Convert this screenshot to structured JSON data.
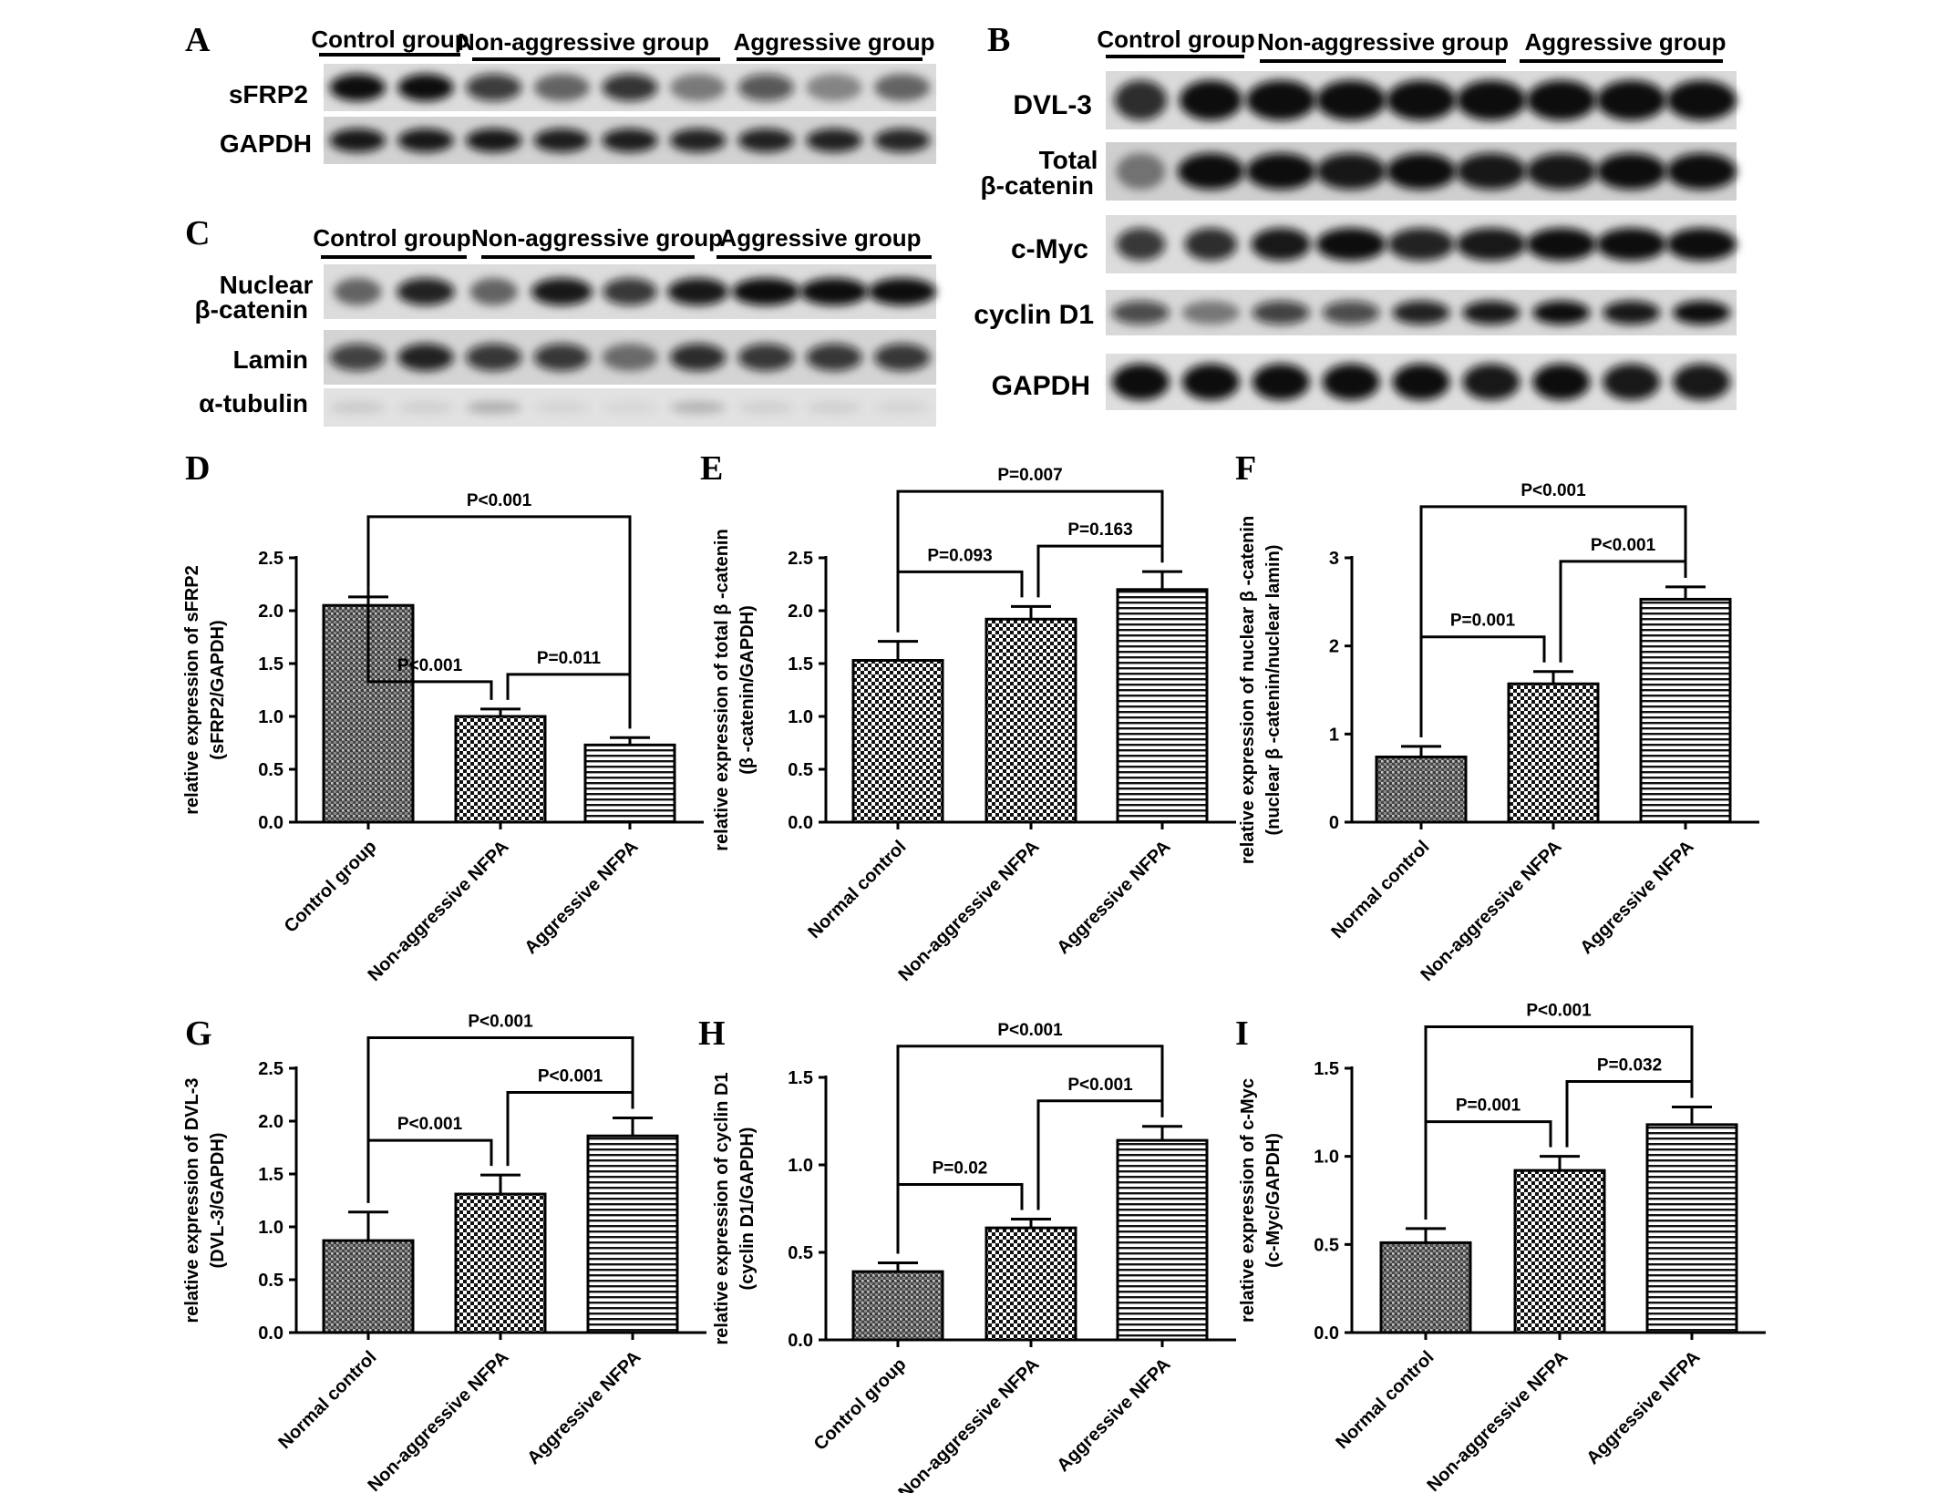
{
  "panel_letters": [
    "A",
    "B",
    "C",
    "D",
    "E",
    "F",
    "G",
    "H",
    "I"
  ],
  "blots": {
    "A": {
      "group_labels": [
        "Control group",
        "Non-aggressive group",
        "Aggressive group"
      ],
      "row_labels": [
        "sFRP2",
        "GAPDH"
      ]
    },
    "B": {
      "group_labels": [
        "Control group",
        "Non-aggressive group",
        "Aggressive group"
      ],
      "row_labels": [
        "DVL-3",
        "Total",
        "β-catenin",
        "c-Myc",
        "cyclin D1",
        "GAPDH"
      ]
    },
    "C": {
      "group_labels": [
        "Control group",
        "Non-aggressive group",
        "Aggressive group"
      ],
      "row_labels": [
        "Nuclear",
        "β-catenin",
        "Lamin",
        "α-tubulin"
      ]
    }
  },
  "chart_data": [
    {
      "panel": "D",
      "type": "bar",
      "categories": [
        "Control group",
        "Non-aggressive NFPA",
        "Aggressive NFPA"
      ],
      "values": [
        2.05,
        1.0,
        0.73
      ],
      "errors": [
        0.08,
        0.07,
        0.07
      ],
      "ylabel_lines": [
        "relative expression of sFRP2",
        "(sFRP2/GAPDH)"
      ],
      "ylim": [
        0,
        2.5
      ],
      "yticks": [
        "0.0",
        "0.5",
        "1.0",
        "1.5",
        "2.0",
        "2.5"
      ],
      "patterns": [
        "stipple",
        "checker",
        "hstripe"
      ],
      "comparisons": [
        {
          "from": 0,
          "to": 2,
          "label": "P<0.001"
        },
        {
          "from": 0,
          "to": 1,
          "label": "P<0.001"
        },
        {
          "from": 1,
          "to": 2,
          "label": "P=0.011"
        }
      ]
    },
    {
      "panel": "E",
      "type": "bar",
      "categories": [
        "Normal control",
        "Non-aggressive NFPA",
        "Aggressive NFPA"
      ],
      "values": [
        1.53,
        1.92,
        2.2
      ],
      "errors": [
        0.18,
        0.12,
        0.17
      ],
      "ylabel_lines": [
        "relative expression of total β -catenin",
        "(β -catenin/GAPDH)"
      ],
      "ylim": [
        0,
        2.5
      ],
      "yticks": [
        "0.0",
        "0.5",
        "1.0",
        "1.5",
        "2.0",
        "2.5"
      ],
      "patterns": [
        "checker",
        "checker",
        "hstripe"
      ],
      "comparisons": [
        {
          "from": 0,
          "to": 2,
          "label": "P=0.007"
        },
        {
          "from": 0,
          "to": 1,
          "label": "P=0.093"
        },
        {
          "from": 1,
          "to": 2,
          "label": "P=0.163"
        }
      ]
    },
    {
      "panel": "F",
      "type": "bar",
      "categories": [
        "Normal control",
        "Non-aggressive NFPA",
        "Aggressive NFPA"
      ],
      "values": [
        0.74,
        1.57,
        2.53
      ],
      "errors": [
        0.12,
        0.14,
        0.14
      ],
      "ylabel_lines": [
        "relative expression of nuclear  β -catenin",
        "(nuclear β -catenin/nuclear lamin)"
      ],
      "ylim": [
        0,
        3
      ],
      "yticks": [
        "0",
        "1",
        "2",
        "3"
      ],
      "patterns": [
        "stipple",
        "checker",
        "hstripe"
      ],
      "comparisons": [
        {
          "from": 0,
          "to": 2,
          "label": "P<0.001"
        },
        {
          "from": 0,
          "to": 1,
          "label": "P=0.001"
        },
        {
          "from": 1,
          "to": 2,
          "label": "P<0.001"
        }
      ]
    },
    {
      "panel": "G",
      "type": "bar",
      "categories": [
        "Normal control",
        "Non-aggressive NFPA",
        "Aggressive NFPA"
      ],
      "values": [
        0.87,
        1.31,
        1.86
      ],
      "errors": [
        0.27,
        0.18,
        0.17
      ],
      "ylabel_lines": [
        "relative expression of DVL-3",
        "(DVL-3/GAPDH)"
      ],
      "ylim": [
        0,
        2.5
      ],
      "yticks": [
        "0.0",
        "0.5",
        "1.0",
        "1.5",
        "2.0",
        "2.5"
      ],
      "patterns": [
        "stipple",
        "checker",
        "hstripe"
      ],
      "comparisons": [
        {
          "from": 0,
          "to": 2,
          "label": "P<0.001"
        },
        {
          "from": 0,
          "to": 1,
          "label": "P<0.001"
        },
        {
          "from": 1,
          "to": 2,
          "label": "P<0.001"
        }
      ]
    },
    {
      "panel": "H",
      "type": "bar",
      "categories": [
        "Control group",
        "Non-aggressive NFPA",
        "Aggressive NFPA"
      ],
      "values": [
        0.39,
        0.64,
        1.14
      ],
      "errors": [
        0.05,
        0.05,
        0.08
      ],
      "ylabel_lines": [
        "relative expression of cyclin D1",
        "(cyclin D1/GAPDH)"
      ],
      "ylim": [
        0,
        1.5
      ],
      "yticks": [
        "0.0",
        "0.5",
        "1.0",
        "1.5"
      ],
      "patterns": [
        "stipple",
        "checker",
        "hstripe"
      ],
      "comparisons": [
        {
          "from": 0,
          "to": 2,
          "label": "P<0.001"
        },
        {
          "from": 0,
          "to": 1,
          "label": "P=0.02"
        },
        {
          "from": 1,
          "to": 2,
          "label": "P<0.001"
        }
      ]
    },
    {
      "panel": "I",
      "type": "bar",
      "categories": [
        "Normal control",
        "Non-aggressive NFPA",
        "Aggressive NFPA"
      ],
      "values": [
        0.51,
        0.92,
        1.18
      ],
      "errors": [
        0.08,
        0.08,
        0.1
      ],
      "ylabel_lines": [
        "relative expression of c-Myc",
        "(c-Myc/GAPDH)"
      ],
      "ylim": [
        0,
        1.5
      ],
      "yticks": [
        "0.0",
        "0.5",
        "1.0",
        "1.5"
      ],
      "patterns": [
        "stipple",
        "checker",
        "hstripe"
      ],
      "comparisons": [
        {
          "from": 0,
          "to": 2,
          "label": "P<0.001"
        },
        {
          "from": 0,
          "to": 1,
          "label": "P=0.001"
        },
        {
          "from": 1,
          "to": 2,
          "label": "P=0.032"
        }
      ]
    }
  ]
}
